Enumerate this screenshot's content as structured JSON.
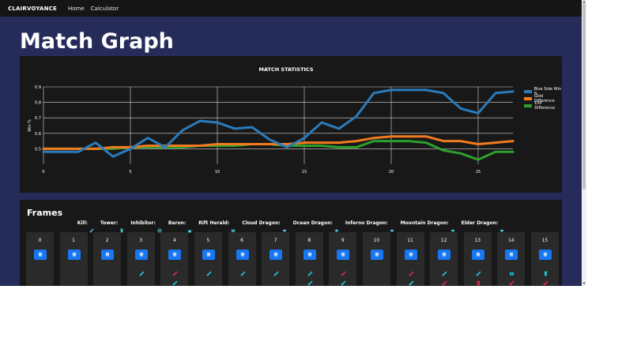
{
  "nav": {
    "brand": "CLAIRVOYANCE",
    "links": [
      "Home",
      "Calculator"
    ]
  },
  "page_title": "Match Graph",
  "chart_data": {
    "type": "line",
    "title": "MATCH STATISTICS",
    "ylabel": "Win %",
    "xlabel": "",
    "xlim": [
      0,
      27
    ],
    "ylim": [
      0.4,
      0.9
    ],
    "x_ticks": [
      0,
      5,
      10,
      15,
      20,
      25
    ],
    "y_ticks": [
      0.5,
      0.6,
      0.7,
      0.8,
      0.9
    ],
    "x_tick_labels": [
      "0",
      "5",
      "10",
      "15",
      "20",
      "25"
    ],
    "y_tick_labels": [
      "0.5",
      "0.6",
      "0.7",
      "0.8",
      "0.9"
    ],
    "grid": "on",
    "legend_position": "top-right",
    "x": [
      0,
      1,
      2,
      3,
      4,
      5,
      6,
      7,
      8,
      9,
      10,
      11,
      12,
      13,
      14,
      15,
      16,
      17,
      18,
      19,
      20,
      21,
      22,
      23,
      24,
      25,
      26,
      27
    ],
    "series": [
      {
        "name": "Blue Side Win %",
        "color": "#2b7bba",
        "values": [
          0.48,
          0.48,
          0.48,
          0.54,
          0.45,
          0.5,
          0.57,
          0.51,
          0.62,
          0.68,
          0.67,
          0.63,
          0.64,
          0.56,
          0.51,
          0.57,
          0.67,
          0.63,
          0.71,
          0.86,
          0.88,
          0.88,
          0.88,
          0.86,
          0.76,
          0.73,
          0.86,
          0.87
        ]
      },
      {
        "name": "Gold Difference",
        "color": "#f27b20",
        "values": [
          0.5,
          0.5,
          0.5,
          0.5,
          0.51,
          0.51,
          0.52,
          0.52,
          0.52,
          0.52,
          0.53,
          0.53,
          0.53,
          0.53,
          0.53,
          0.54,
          0.54,
          0.54,
          0.55,
          0.57,
          0.58,
          0.58,
          0.58,
          0.55,
          0.55,
          0.53,
          0.54,
          0.55
        ]
      },
      {
        "name": "EXP Difference",
        "color": "#2ca02c",
        "values": [
          0.5,
          0.5,
          0.5,
          0.5,
          0.5,
          0.51,
          0.51,
          0.51,
          0.51,
          0.52,
          0.52,
          0.52,
          0.53,
          0.53,
          0.52,
          0.52,
          0.52,
          0.51,
          0.51,
          0.55,
          0.55,
          0.55,
          0.54,
          0.49,
          0.47,
          0.43,
          0.48,
          0.48
        ]
      }
    ]
  },
  "frames": {
    "title": "Frames",
    "event_legend": [
      {
        "label": "Kill:",
        "icon": "sword-icon",
        "color": "#4dd0e1"
      },
      {
        "label": "Tower:",
        "icon": "tower-icon",
        "color": "#4dd0e1"
      },
      {
        "label": "Inhibitor:",
        "icon": "inhibitor-icon",
        "color": "#4dd0e1"
      },
      {
        "label": "Baron:",
        "icon": "baron-icon",
        "color": "#4dd0e1"
      },
      {
        "label": "Rift Herald:",
        "icon": "herald-icon",
        "color": "#4dd0e1"
      },
      {
        "label": "Cloud Dragon:",
        "icon": "cloud-dragon-icon",
        "color": "#4dd0e1"
      },
      {
        "label": "Ocean Dragon:",
        "icon": "ocean-dragon-icon",
        "color": "#4dd0e1"
      },
      {
        "label": "Inferno Dragon:",
        "icon": "inferno-dragon-icon",
        "color": "#4dd0e1"
      },
      {
        "label": "Mountain Dragon:",
        "icon": "mountain-dragon-icon",
        "color": "#4dd0e1"
      },
      {
        "label": "Elder Dragon:",
        "icon": "elder-dragon-icon",
        "color": "#4dd0e1"
      }
    ],
    "button_icon": "calendar-icon",
    "button_color": "#1877f2",
    "items": [
      {
        "number": "0",
        "events": []
      },
      {
        "number": "1",
        "events": []
      },
      {
        "number": "2",
        "events": []
      },
      {
        "number": "3",
        "events": [
          {
            "icon": "sword-icon",
            "team": "blue"
          }
        ]
      },
      {
        "number": "4",
        "events": [
          {
            "icon": "sword-icon",
            "team": "red"
          },
          {
            "icon": "sword-icon",
            "team": "blue"
          },
          {
            "icon": "sword-icon",
            "team": "red"
          }
        ]
      },
      {
        "number": "5",
        "events": [
          {
            "icon": "sword-icon",
            "team": "blue"
          }
        ]
      },
      {
        "number": "6",
        "events": [
          {
            "icon": "sword-icon",
            "team": "blue"
          }
        ]
      },
      {
        "number": "7",
        "events": [
          {
            "icon": "sword-icon",
            "team": "blue"
          }
        ]
      },
      {
        "number": "8",
        "events": [
          {
            "icon": "sword-icon",
            "team": "blue"
          },
          {
            "icon": "sword-icon",
            "team": "blue"
          },
          {
            "icon": "sword-icon",
            "team": "red"
          }
        ]
      },
      {
        "number": "9",
        "events": [
          {
            "icon": "sword-icon",
            "team": "red"
          },
          {
            "icon": "sword-icon",
            "team": "blue"
          },
          {
            "icon": "sword-icon",
            "team": "blue"
          }
        ]
      },
      {
        "number": "10",
        "events": []
      },
      {
        "number": "11",
        "events": [
          {
            "icon": "sword-icon",
            "team": "red"
          },
          {
            "icon": "sword-icon",
            "team": "blue"
          },
          {
            "icon": "sword-icon",
            "team": "red"
          }
        ]
      },
      {
        "number": "12",
        "events": [
          {
            "icon": "sword-icon",
            "team": "blue"
          },
          {
            "icon": "sword-icon",
            "team": "red"
          },
          {
            "icon": "sword-icon",
            "team": "red"
          }
        ]
      },
      {
        "number": "13",
        "events": [
          {
            "icon": "sword-icon",
            "team": "blue"
          },
          {
            "icon": "tower-icon",
            "team": "red"
          },
          {
            "icon": "sword-icon",
            "team": "red"
          }
        ]
      },
      {
        "number": "14",
        "events": [
          {
            "icon": "herald-icon",
            "team": "blue"
          },
          {
            "icon": "sword-icon",
            "team": "red"
          },
          {
            "icon": "sword-icon",
            "team": "red"
          }
        ]
      },
      {
        "number": "15",
        "events": [
          {
            "icon": "tower-icon",
            "team": "blue"
          },
          {
            "icon": "sword-icon",
            "team": "red"
          },
          {
            "icon": "sword-icon",
            "team": "blue"
          }
        ]
      }
    ]
  },
  "colors": {
    "blue_team": "#1ec8d8",
    "red_team": "#e0284a"
  }
}
